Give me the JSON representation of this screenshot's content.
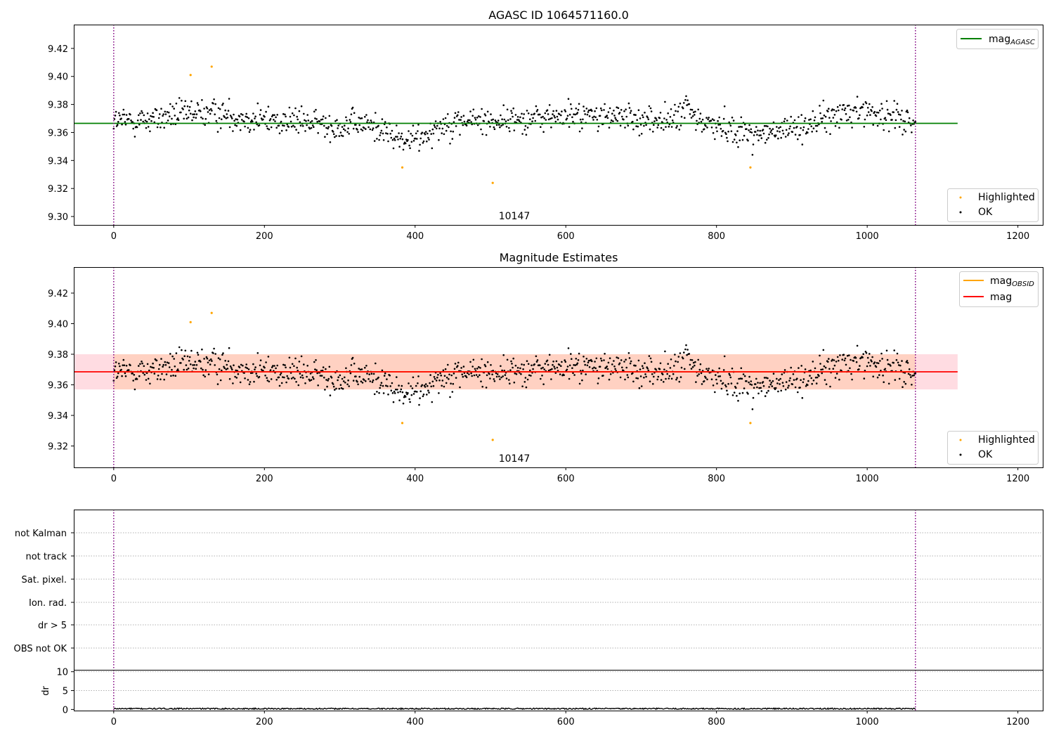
{
  "colors": {
    "ok_points": "#000000",
    "highlighted_points": "#ffa500",
    "mag_agasc_line": "#008000",
    "mag_obsid_line": "#ffa500",
    "mag_line": "#ff0000",
    "band_pink": "#ffc0cb",
    "band_orange": "#ffc8a8",
    "obs_boundary": "#800080",
    "grid": "#b0b0b0"
  },
  "chart_data": [
    {
      "type": "scatter",
      "title": "AGASC ID 1064571160.0",
      "xlabel": "",
      "ylabel": "",
      "xlim": [
        -53,
        1233
      ],
      "ylim": [
        9.294,
        9.437
      ],
      "xticks": [
        0,
        200,
        400,
        600,
        800,
        1000,
        1200
      ],
      "yticks": [
        9.3,
        9.32,
        9.34,
        9.36,
        9.38,
        9.4,
        9.42
      ],
      "ytick_labels": [
        "9.30",
        "9.32",
        "9.34",
        "9.36",
        "9.38",
        "9.40",
        "9.42"
      ],
      "hlines": [
        {
          "name": "mag_AGASC",
          "label_main": "mag",
          "label_sub": "AGASC",
          "y": 9.3665,
          "x_range": [
            -53,
            1120
          ],
          "color": "#008000"
        }
      ],
      "vlines": [
        {
          "x": 0,
          "color": "#800080",
          "style": "dotted"
        },
        {
          "x": 1064,
          "color": "#800080",
          "style": "dotted"
        }
      ],
      "annotations": [
        {
          "text": "10147",
          "x": 532,
          "y": 9.297
        }
      ],
      "highlighted": {
        "name": "Highlighted",
        "x": [
          102,
          130,
          383,
          503,
          845
        ],
        "y": [
          9.401,
          9.407,
          9.335,
          9.324,
          9.335
        ]
      },
      "ok_series": {
        "name": "OK",
        "n_points": 1064,
        "x_range": [
          0,
          1064
        ],
        "center": 9.368,
        "spread": 0.0085
      },
      "legend_upper": "top-right",
      "legend_lower": "bottom-right",
      "grid": false
    },
    {
      "type": "scatter",
      "title": "Magnitude Estimates",
      "xlabel": "",
      "ylabel": "",
      "xlim": [
        -53,
        1233
      ],
      "ylim": [
        9.306,
        9.437
      ],
      "xticks": [
        0,
        200,
        400,
        600,
        800,
        1000,
        1200
      ],
      "yticks": [
        9.32,
        9.34,
        9.36,
        9.38,
        9.4,
        9.42
      ],
      "ytick_labels": [
        "9.32",
        "9.34",
        "9.36",
        "9.38",
        "9.40",
        "9.42"
      ],
      "hlines": [
        {
          "name": "mag_OBSID",
          "label_main": "mag",
          "label_sub": "OBSID",
          "y": 9.3685,
          "x_range": [
            0,
            1064
          ],
          "color": "#ffa500"
        },
        {
          "name": "mag",
          "label_main": "mag",
          "label_sub": "",
          "y": 9.3685,
          "x_range": [
            -53,
            1120
          ],
          "color": "#ff0000"
        }
      ],
      "bands": [
        {
          "name": "mag band",
          "y_range": [
            9.357,
            9.38
          ],
          "x_range": [
            -53,
            1120
          ],
          "color": "#ffc0cb"
        },
        {
          "name": "mag_OBSID band",
          "y_range": [
            9.357,
            9.38
          ],
          "x_range": [
            0,
            1064
          ],
          "color": "#ffc8a8"
        }
      ],
      "vlines": [
        {
          "x": 0,
          "color": "#800080",
          "style": "dotted"
        },
        {
          "x": 1064,
          "color": "#800080",
          "style": "dotted"
        }
      ],
      "annotations": [
        {
          "text": "10147",
          "x": 532,
          "y": 9.309
        }
      ],
      "highlighted": {
        "name": "Highlighted",
        "x": [
          102,
          130,
          383,
          503,
          845
        ],
        "y": [
          9.401,
          9.407,
          9.335,
          9.324,
          9.335
        ]
      },
      "ok_series": {
        "name": "OK",
        "n_points": 1064,
        "x_range": [
          0,
          1064
        ],
        "center": 9.368,
        "spread": 0.0085
      },
      "legend_upper": "top-right",
      "legend_lower": "bottom-right",
      "grid": false
    },
    {
      "type": "scatter",
      "title": "",
      "xlabel": "",
      "ylabel": "",
      "xlim": [
        -53,
        1233
      ],
      "categories": [
        "not Kalman",
        "not track",
        "Sat. pixel.",
        "Ion. rad.",
        "dr > 5",
        "OBS not OK"
      ],
      "flags_set": [],
      "vlines": [
        {
          "x": 0,
          "color": "#800080",
          "style": "dotted"
        },
        {
          "x": 1064,
          "color": "#800080",
          "style": "dotted"
        }
      ],
      "grid": true
    },
    {
      "type": "line",
      "title": "",
      "xlabel": "",
      "ylabel": "dr",
      "xlim": [
        -53,
        1233
      ],
      "ylim": [
        -0.3,
        10.5
      ],
      "xticks": [
        0,
        200,
        400,
        600,
        800,
        1000,
        1200
      ],
      "yticks": [
        0,
        5,
        10
      ],
      "ytick_labels": [
        "0",
        "5",
        "10"
      ],
      "series": [
        {
          "name": "",
          "x_range": [
            0,
            1064
          ],
          "typical": 0.2,
          "max": 0.6
        }
      ],
      "vlines": [
        {
          "x": 0,
          "color": "#800080",
          "style": "dotted"
        },
        {
          "x": 1064,
          "color": "#800080",
          "style": "dotted"
        }
      ],
      "grid": true
    }
  ]
}
